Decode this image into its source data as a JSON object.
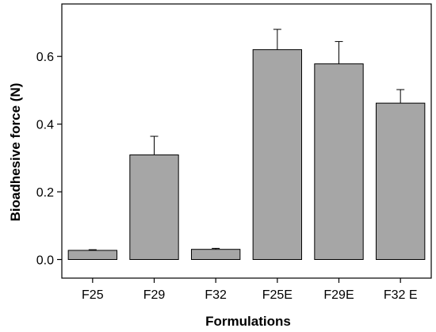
{
  "chart_data": {
    "type": "bar",
    "title": "",
    "xlabel": "Formulations",
    "ylabel": "Bioadhesive force (N)",
    "categories": [
      "F25",
      "F29",
      "F32",
      "F25E",
      "F29E",
      "F32 E"
    ],
    "values": [
      0.027,
      0.309,
      0.03,
      0.62,
      0.578,
      0.462
    ],
    "errors": [
      0.002,
      0.055,
      0.003,
      0.06,
      0.066,
      0.04
    ],
    "yticks": [
      "0.0",
      "0.2",
      "0.4",
      "0.6"
    ],
    "ylim": [
      -0.055,
      0.755
    ],
    "grid": false,
    "legend": "none",
    "bar_color": "#a6a6a6",
    "edge_color": "#000000"
  }
}
